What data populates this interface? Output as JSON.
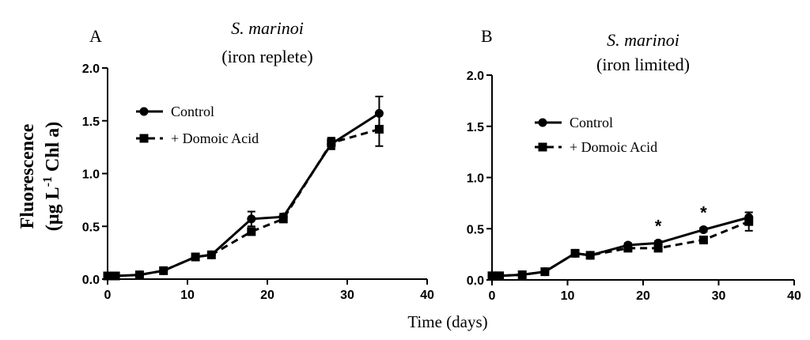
{
  "figure": {
    "xlabel": "Time (days)",
    "ylabel_line1": "Fluorescence",
    "ylabel_line2_prefix": "(µg L",
    "ylabel_superscript": "-1",
    "ylabel_line2_suffix": " Chl a)"
  },
  "chart_data": [
    {
      "type": "line",
      "panel_label": "A",
      "title_line1": "S. marinoi",
      "title_line2": "(iron replete)",
      "xlim": [
        0,
        40
      ],
      "ylim": [
        0,
        2.0
      ],
      "x_ticks": [
        0,
        10,
        20,
        30,
        40
      ],
      "y_ticks": [
        0.0,
        0.5,
        1.0,
        1.5,
        2.0
      ],
      "x_tick_labels": [
        "0",
        "10",
        "20",
        "30",
        "40"
      ],
      "y_tick_labels": [
        "0.0",
        "0.5",
        "1.0",
        "1.5",
        "2.0"
      ],
      "legend": [
        "Control",
        "+ Domoic Acid"
      ],
      "series": [
        {
          "name": "Control",
          "marker": "circle",
          "line": "solid",
          "x": [
            0,
            1,
            4,
            7,
            11,
            13,
            18,
            22,
            28,
            34
          ],
          "y": [
            0.03,
            0.03,
            0.04,
            0.08,
            0.21,
            0.23,
            0.57,
            0.59,
            1.28,
            1.57
          ],
          "err": [
            0.01,
            0.01,
            0.01,
            0.01,
            0.02,
            0.02,
            0.07,
            0.03,
            0.05,
            0.16
          ]
        },
        {
          "name": "+ Domoic Acid",
          "marker": "square",
          "line": "dashed",
          "x": [
            0,
            1,
            4,
            7,
            11,
            13,
            18,
            22,
            28,
            34
          ],
          "y": [
            0.03,
            0.03,
            0.04,
            0.08,
            0.21,
            0.23,
            0.45,
            0.57,
            1.29,
            1.42
          ],
          "err": [
            0.01,
            0.01,
            0.01,
            0.01,
            0.02,
            0.02,
            0.03,
            0.02,
            0.05,
            0.16
          ]
        }
      ],
      "annotations": []
    },
    {
      "type": "line",
      "panel_label": "B",
      "title_line1": "S. marinoi",
      "title_line2": "(iron limited)",
      "xlim": [
        0,
        40
      ],
      "ylim": [
        0,
        2.0
      ],
      "x_ticks": [
        0,
        10,
        20,
        30,
        40
      ],
      "y_ticks": [
        0.0,
        0.5,
        1.0,
        1.5,
        2.0
      ],
      "x_tick_labels": [
        "0",
        "10",
        "20",
        "30",
        "40"
      ],
      "y_tick_labels": [
        "0.0",
        "0.5",
        "1.0",
        "1.5",
        "2.0"
      ],
      "legend": [
        "Control",
        "+ Domoic Acid"
      ],
      "series": [
        {
          "name": "Control",
          "marker": "circle",
          "line": "solid",
          "x": [
            0,
            1,
            4,
            7,
            11,
            13,
            18,
            22,
            28,
            34
          ],
          "y": [
            0.04,
            0.04,
            0.05,
            0.08,
            0.26,
            0.24,
            0.34,
            0.36,
            0.49,
            0.61
          ],
          "err": [
            0.01,
            0.01,
            0.01,
            0.01,
            0.03,
            0.02,
            0.02,
            0.02,
            0.02,
            0.05
          ]
        },
        {
          "name": "+ Domoic Acid",
          "marker": "square",
          "line": "dashed",
          "x": [
            0,
            1,
            4,
            7,
            11,
            13,
            18,
            22,
            28,
            34
          ],
          "y": [
            0.04,
            0.04,
            0.05,
            0.08,
            0.26,
            0.24,
            0.31,
            0.31,
            0.39,
            0.57
          ],
          "err": [
            0.01,
            0.01,
            0.01,
            0.01,
            0.03,
            0.02,
            0.02,
            0.02,
            0.02,
            0.09
          ]
        }
      ],
      "annotations": [
        {
          "text": "*",
          "x": 22,
          "y": 0.36
        },
        {
          "text": "*",
          "x": 28,
          "y": 0.49
        }
      ]
    }
  ]
}
